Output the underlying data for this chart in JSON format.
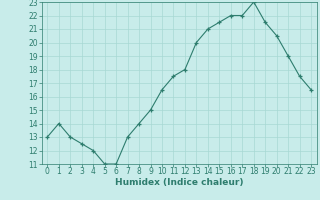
{
  "x": [
    0,
    1,
    2,
    3,
    4,
    5,
    6,
    7,
    8,
    9,
    10,
    11,
    12,
    13,
    14,
    15,
    16,
    17,
    18,
    19,
    20,
    21,
    22,
    23
  ],
  "y": [
    13,
    14,
    13,
    12.5,
    12,
    11,
    11,
    13,
    14,
    15,
    16.5,
    17.5,
    18,
    20,
    21,
    21.5,
    22,
    22,
    23,
    21.5,
    20.5,
    19,
    17.5,
    16.5
  ],
  "xlabel": "Humidex (Indice chaleur)",
  "ylim": [
    11,
    23
  ],
  "xlim": [
    -0.5,
    23.5
  ],
  "yticks": [
    11,
    12,
    13,
    14,
    15,
    16,
    17,
    18,
    19,
    20,
    21,
    22,
    23
  ],
  "xticks": [
    0,
    1,
    2,
    3,
    4,
    5,
    6,
    7,
    8,
    9,
    10,
    11,
    12,
    13,
    14,
    15,
    16,
    17,
    18,
    19,
    20,
    21,
    22,
    23
  ],
  "line_color": "#2e7d6e",
  "marker_color": "#2e7d6e",
  "bg_color": "#c8ecea",
  "grid_color": "#a8d8d4",
  "label_color": "#2e7d6e",
  "tick_color": "#2e7d6e",
  "label_fontsize": 6.5,
  "tick_fontsize": 5.5
}
